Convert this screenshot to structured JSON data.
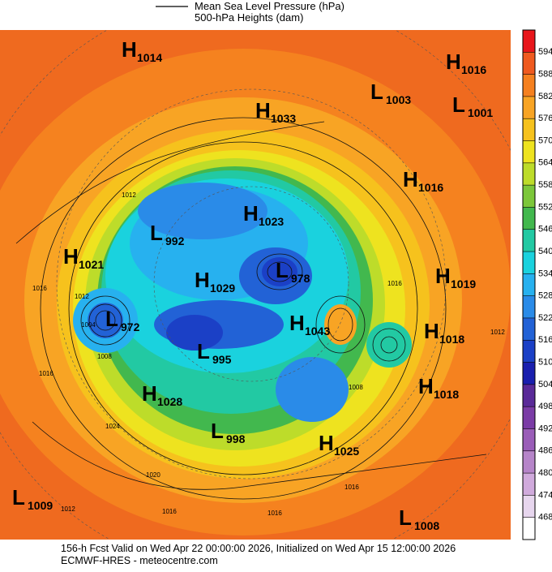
{
  "header": {
    "legend": [
      "Mean Sea Level Pressure (hPa)",
      "500-hPa Heights (dam)"
    ]
  },
  "colorbar": {
    "ticks": [
      594,
      588,
      582,
      576,
      570,
      564,
      558,
      552,
      546,
      540,
      534,
      528,
      522,
      516,
      510,
      504,
      498,
      492,
      486,
      480,
      474,
      468
    ],
    "colors": [
      "#e8161b",
      "#ef5a1f",
      "#f5801f",
      "#f8a424",
      "#f6c21d",
      "#eee31f",
      "#bddc2a",
      "#7cc73a",
      "#42b84e",
      "#22c9a3",
      "#1ad2de",
      "#27b1ef",
      "#2a8be8",
      "#2262d6",
      "#1b40c6",
      "#1a1fae",
      "#5a2a98",
      "#7b3ca6",
      "#9a5db8",
      "#b685c9",
      "#d0aadc",
      "#e7d6ee",
      "#ffffff"
    ]
  },
  "systems": [
    {
      "letter": "H",
      "value": 1014
    },
    {
      "letter": "H",
      "value": 1016
    },
    {
      "letter": "L",
      "value": 1003
    },
    {
      "letter": "L",
      "value": 1001
    },
    {
      "letter": "H",
      "value": 1033
    },
    {
      "letter": "H",
      "value": 1016
    },
    {
      "letter": "H",
      "value": 1023
    },
    {
      "letter": "L",
      "value": 992
    },
    {
      "letter": "H",
      "value": 1021
    },
    {
      "letter": "L",
      "value": 978
    },
    {
      "letter": "H",
      "value": 1029
    },
    {
      "letter": "H",
      "value": 1019
    },
    {
      "letter": "L",
      "value": 972
    },
    {
      "letter": "H",
      "value": 1043
    },
    {
      "letter": "H",
      "value": 1018
    },
    {
      "letter": "L",
      "value": 995
    },
    {
      "letter": "H",
      "value": 1018
    },
    {
      "letter": "H",
      "value": 1028
    },
    {
      "letter": "L",
      "value": 998
    },
    {
      "letter": "H",
      "value": 1025
    },
    {
      "letter": "L",
      "value": 1009
    },
    {
      "letter": "L",
      "value": 1008
    }
  ],
  "contour_labels": [
    1012,
    1016,
    1012,
    1004,
    1008,
    1016,
    1024,
    1020,
    1012,
    1016,
    1016,
    1016,
    1012,
    1016,
    1008
  ],
  "footer": {
    "line1": "156-h Fcst Valid on Wed Apr 22 00:00:00 2026, Initialized on Wed Apr 15 12:00:00 2026",
    "line2": "ECMWF-HRES  -  meteocentre.com"
  }
}
